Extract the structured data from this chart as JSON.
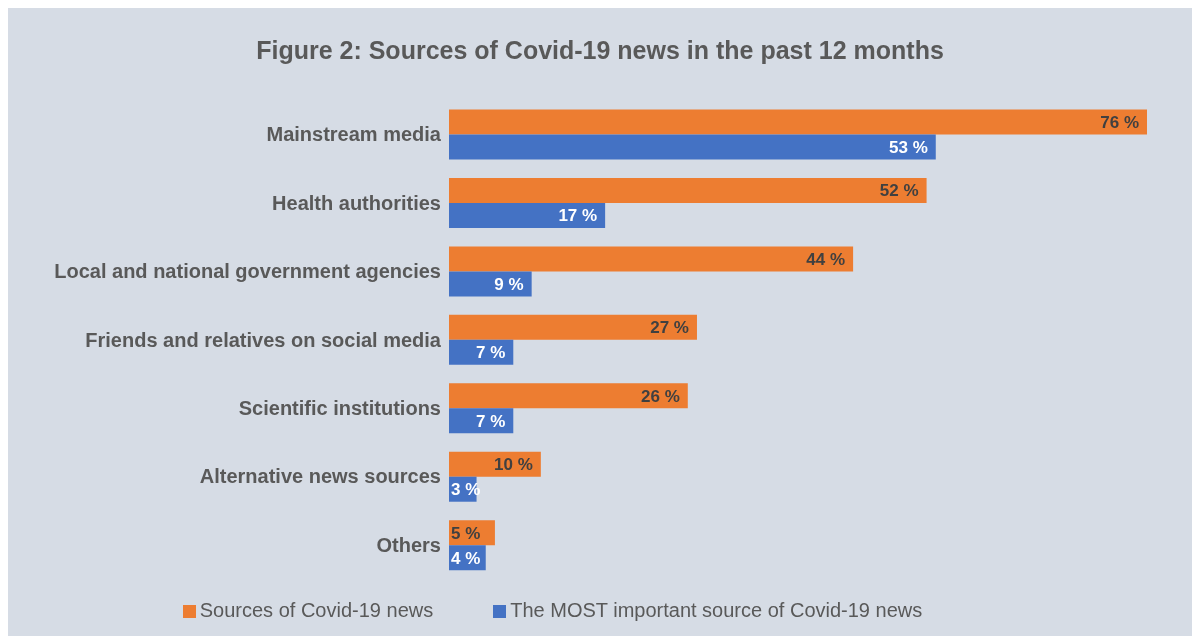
{
  "chart_data": {
    "type": "bar",
    "orientation": "horizontal",
    "title": "Figure 2: Sources of Covid-19 news in the past 12 months",
    "categories": [
      "Mainstream media",
      "Health authorities",
      "Local and national government agencies",
      "Friends and relatives on social media",
      "Scientific institutions",
      "Alternative news sources",
      "Others"
    ],
    "series": [
      {
        "name": "Sources of Covid-19 news",
        "color": "#ed7d31",
        "values": [
          76,
          52,
          44,
          27,
          26,
          10,
          5
        ],
        "value_labels": [
          "76 %",
          "52 %",
          "44 %",
          "27 %",
          "26 %",
          "10 %",
          "5 %"
        ]
      },
      {
        "name": "The MOST important source of Covid-19 news",
        "color": "#4472c4",
        "values": [
          53,
          17,
          9,
          7,
          7,
          3,
          4
        ],
        "value_labels": [
          "53 %",
          "17 %",
          "9 %",
          "7 %",
          "7 %",
          "3 %",
          "4 %"
        ]
      }
    ],
    "grid": false,
    "legend": "bottom",
    "tick_labels": "y"
  }
}
